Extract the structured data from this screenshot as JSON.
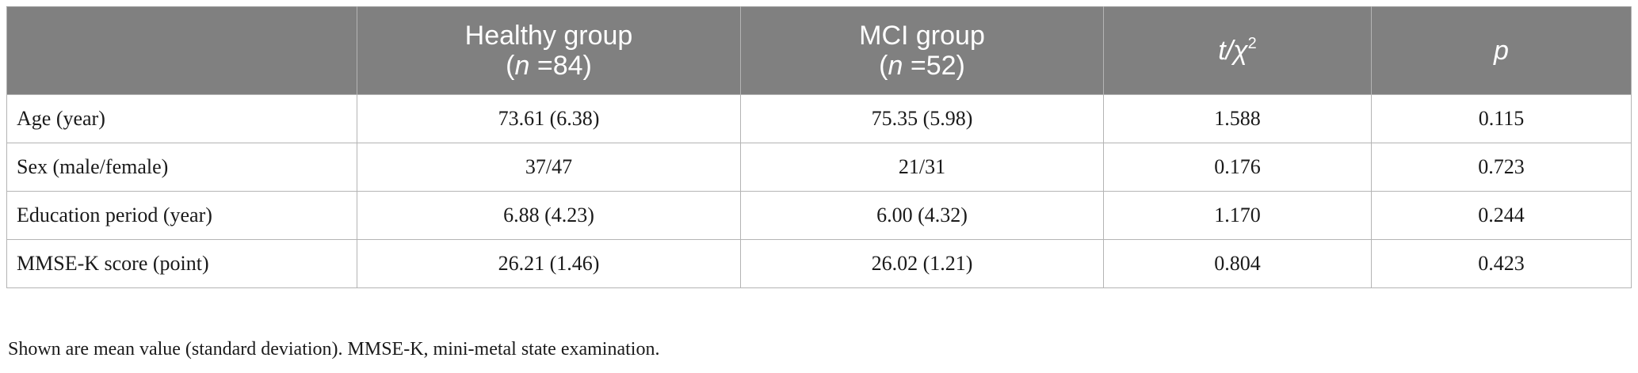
{
  "table": {
    "headers": [
      {
        "line1": "",
        "line2_italic": "",
        "line2_rest": ""
      },
      {
        "line1": "Healthy group",
        "line2_open": "(",
        "line2_italic": "n",
        "line2_rest": " =84)"
      },
      {
        "line1": "MCI group",
        "line2_open": "(",
        "line2_italic": "n",
        "line2_rest": " =52)"
      },
      {
        "main": "t/χ",
        "sup": "2"
      },
      {
        "main": "p"
      }
    ],
    "rows": [
      {
        "label": "Age (year)",
        "healthy": "73.61 (6.38)",
        "mci": "75.35 (5.98)",
        "stat": "1.588",
        "p": "0.115"
      },
      {
        "label": "Sex (male/female)",
        "healthy": "37/47",
        "mci": "21/31",
        "stat": "0.176",
        "p": "0.723"
      },
      {
        "label": "Education period (year)",
        "healthy": "6.88 (4.23)",
        "mci": "6.00 (4.32)",
        "stat": "1.170",
        "p": "0.244"
      },
      {
        "label": "MMSE-K score (point)",
        "healthy": "26.21 (1.46)",
        "mci": "26.02 (1.21)",
        "stat": "0.804",
        "p": "0.423"
      }
    ]
  },
  "footnote": "Shown are mean value (standard deviation). MMSE-K, mini-metal state examination."
}
